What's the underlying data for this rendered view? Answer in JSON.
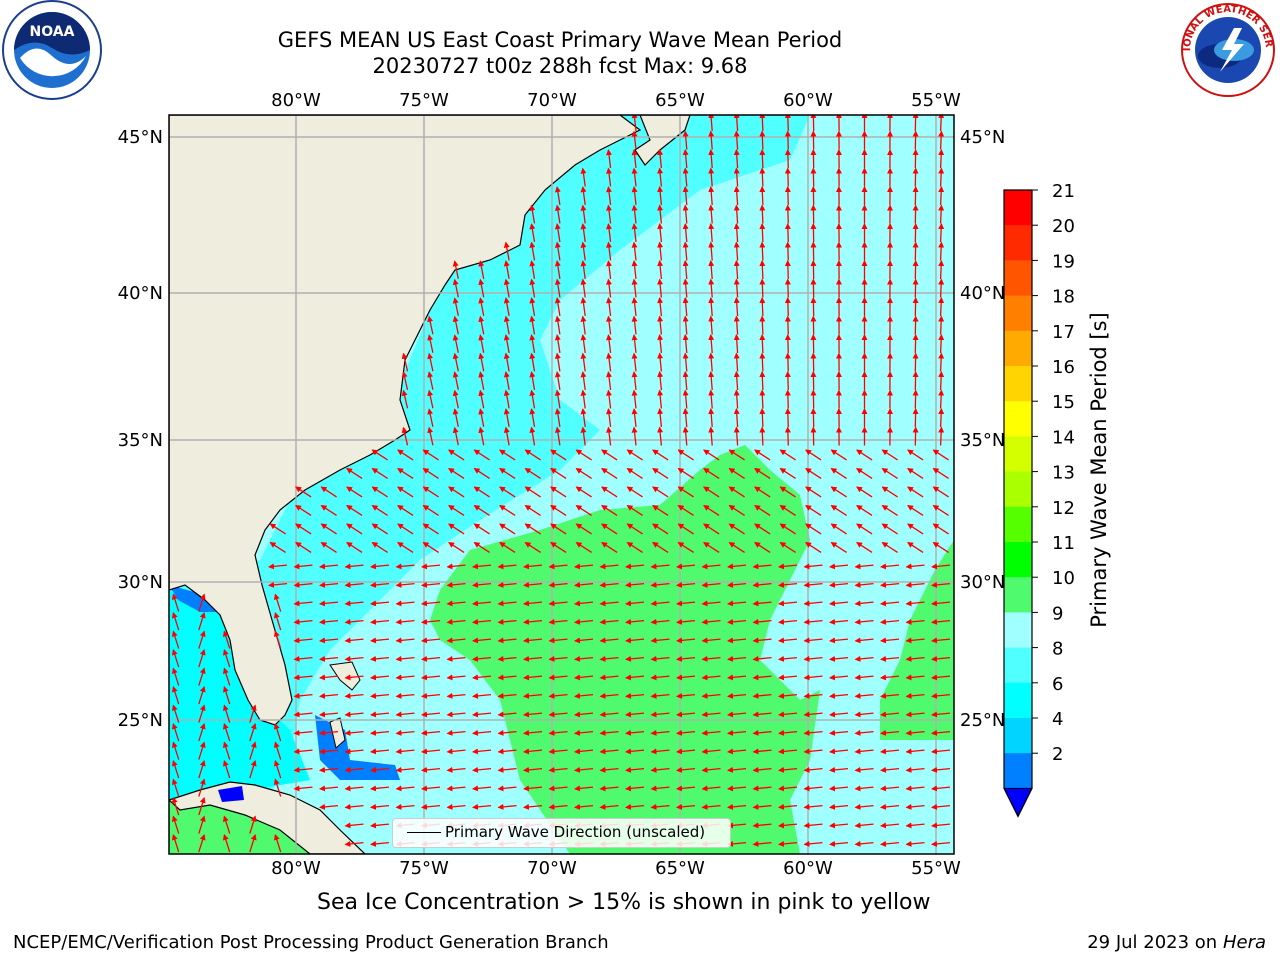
{
  "title": {
    "line1": "GEFS MEAN US East Coast Primary Wave Mean Period",
    "line2": "20230727 t00z 288h fcst   Max: 9.68"
  },
  "map": {
    "lon_ticks": [
      "80°W",
      "75°W",
      "70°W",
      "65°W",
      "60°W",
      "55°W"
    ],
    "lat_ticks": [
      "45°N",
      "40°N",
      "35°N",
      "30°N",
      "25°N"
    ],
    "colors": {
      "land": "#efedde",
      "gridline": "#b0b0b0",
      "coast": "#000000",
      "arrow": "#ff0000"
    }
  },
  "legend": {
    "label": "Primary Wave Direction (unscaled)"
  },
  "colorbar": {
    "label": "Primary Wave Mean Period [s]",
    "ticks": [
      "21",
      "20",
      "19",
      "18",
      "17",
      "16",
      "15",
      "14",
      "13",
      "12",
      "11",
      "10",
      "9",
      "8",
      "6",
      "4",
      "2"
    ],
    "colors": [
      "#ff0000",
      "#ff2a00",
      "#ff5500",
      "#ff8000",
      "#ffaa00",
      "#ffd400",
      "#ffff00",
      "#d4ff00",
      "#aaff00",
      "#55ff00",
      "#00ff00",
      "#50fa6e",
      "#a0ffff",
      "#50ffff",
      "#00ffff",
      "#00d4ff",
      "#0080ff"
    ],
    "under_color": "#0000ff"
  },
  "caption": "Sea Ice Concentration > 15% is shown in pink to yellow",
  "footer": {
    "left": "NCEP/EMC/Verification Post Processing Product Generation Branch",
    "date": "29 Jul 2023 on",
    "machine": "Hera"
  },
  "logos": {
    "noaa": "NOAA",
    "nws": "NATIONAL WEATHER SERVICE"
  },
  "field": {
    "max_period": 9.68
  }
}
